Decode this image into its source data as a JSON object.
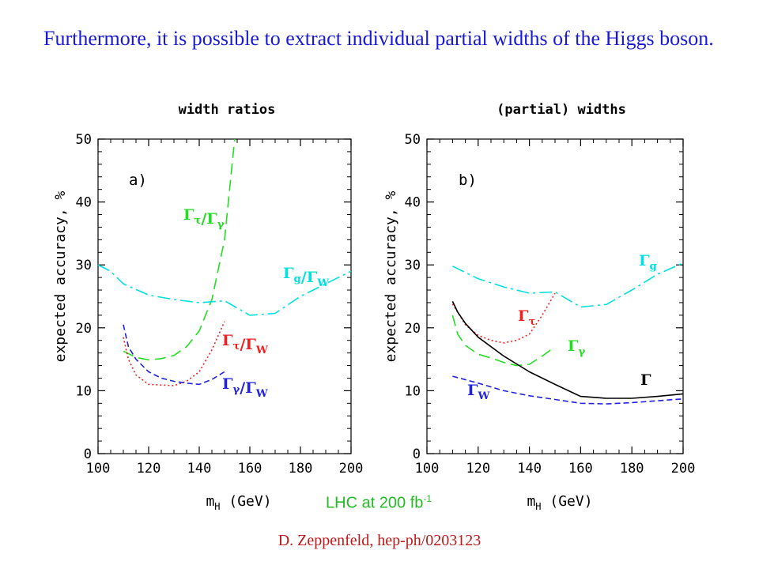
{
  "slide": {
    "title": "Furthermore, it is possible to extract individual partial widths of the Higgs boson.",
    "caption_main": "LHC at 200 fb",
    "caption_sup": "-1",
    "citation": "D. Zeppenfeld, hep-ph/0203123"
  },
  "chart_data": [
    {
      "type": "line",
      "title": "width ratios",
      "panel_label": "a)",
      "xlabel": "m_H (GeV)",
      "ylabel": "expected accuracy, %",
      "xlim": [
        100,
        200
      ],
      "ylim": [
        0,
        50
      ],
      "xticks": [
        100,
        120,
        140,
        160,
        180,
        200
      ],
      "yticks": [
        0,
        10,
        20,
        30,
        40,
        50
      ],
      "grid": false,
      "series": [
        {
          "name": "Γτ/Γγ",
          "color": "#22dd22",
          "dash": "long-dash",
          "x": [
            110,
            115,
            120,
            125,
            130,
            135,
            140,
            145,
            150,
            152,
            153,
            154
          ],
          "y": [
            16.3,
            15.3,
            14.9,
            15.1,
            15.6,
            17.0,
            19.5,
            24.5,
            34.0,
            42.0,
            46.0,
            50.0
          ]
        },
        {
          "name": "Γg/ΓW",
          "color": "#00e0e0",
          "dash": "long-dash-dot",
          "x": [
            100,
            105,
            110,
            120,
            130,
            140,
            150,
            160,
            170,
            180,
            190,
            200
          ],
          "y": [
            30.0,
            29.0,
            27.0,
            25.2,
            24.5,
            24.0,
            24.3,
            22.0,
            22.3,
            25.0,
            27.0,
            29.0
          ]
        },
        {
          "name": "Γτ/ΓW",
          "color": "#ee2020",
          "dash": "dotted",
          "x": [
            110,
            112,
            115,
            120,
            125,
            130,
            135,
            140,
            145,
            150
          ],
          "y": [
            18.5,
            15.0,
            12.5,
            11.0,
            10.9,
            10.8,
            11.5,
            13.0,
            16.5,
            21.0
          ]
        },
        {
          "name": "Γγ/ΓW",
          "color": "#2222dd",
          "dash": "short-dash",
          "x": [
            110,
            112,
            115,
            120,
            125,
            130,
            135,
            140,
            145,
            150
          ],
          "y": [
            20.5,
            17.0,
            15.0,
            13.0,
            12.0,
            11.5,
            11.2,
            11.0,
            11.8,
            13.0
          ]
        }
      ]
    },
    {
      "type": "line",
      "title": "(partial) widths",
      "panel_label": "b)",
      "xlabel": "m_H (GeV)",
      "ylabel": "expected accuracy, %",
      "xlim": [
        100,
        200
      ],
      "ylim": [
        0,
        50
      ],
      "xticks": [
        100,
        120,
        140,
        160,
        180,
        200
      ],
      "yticks": [
        0,
        10,
        20,
        30,
        40,
        50
      ],
      "grid": false,
      "series": [
        {
          "name": "Γg",
          "color": "#00e0e0",
          "dash": "long-dash-dot",
          "x": [
            110,
            120,
            130,
            140,
            150,
            160,
            170,
            180,
            190,
            200
          ],
          "y": [
            29.8,
            27.8,
            26.5,
            25.5,
            25.7,
            23.3,
            23.7,
            26.0,
            28.5,
            30.3
          ]
        },
        {
          "name": "Γτ",
          "color": "#ee2020",
          "dash": "dotted",
          "x": [
            110,
            115,
            120,
            125,
            130,
            135,
            140,
            145,
            150
          ],
          "y": [
            23.8,
            20.5,
            18.8,
            18.0,
            17.6,
            18.0,
            19.0,
            22.0,
            25.5
          ]
        },
        {
          "name": "Γγ",
          "color": "#22dd22",
          "dash": "long-dash",
          "x": [
            110,
            112,
            115,
            120,
            125,
            130,
            135,
            140,
            145,
            150
          ],
          "y": [
            22.0,
            19.0,
            17.2,
            15.8,
            15.2,
            14.5,
            14.0,
            14.2,
            15.5,
            17.0
          ]
        },
        {
          "name": "Γ",
          "color": "#000000",
          "dash": "solid",
          "x": [
            110,
            112,
            115,
            120,
            130,
            140,
            150,
            160,
            170,
            180,
            190,
            200
          ],
          "y": [
            24.2,
            22.5,
            20.7,
            18.5,
            15.5,
            13.0,
            11.0,
            9.1,
            8.8,
            8.8,
            9.1,
            9.5
          ]
        },
        {
          "name": "ΓW",
          "color": "#2222dd",
          "dash": "short-dash",
          "x": [
            110,
            120,
            130,
            140,
            150,
            160,
            170,
            180,
            190,
            200
          ],
          "y": [
            12.3,
            11.2,
            10.0,
            9.2,
            8.6,
            8.0,
            7.9,
            8.1,
            8.4,
            8.7
          ]
        }
      ]
    }
  ]
}
